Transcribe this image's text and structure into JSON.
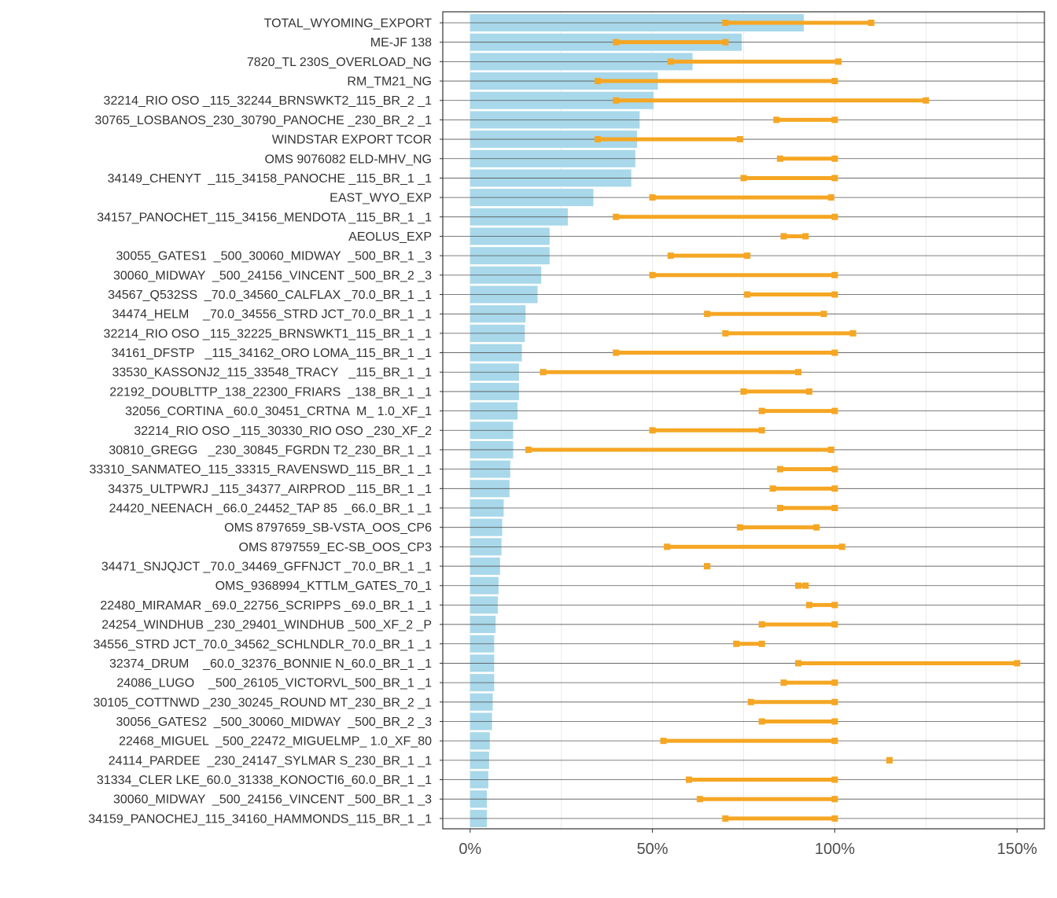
{
  "chart_data": {
    "type": "bar",
    "orientation": "horizontal",
    "title": "",
    "xlabel": "",
    "ylabel": "",
    "xlim": [
      -0.075,
      1.575
    ],
    "xticks": [
      0,
      0.5,
      1.0,
      1.5
    ],
    "xtick_labels": [
      "0%",
      "50%",
      "100%",
      "150%"
    ],
    "grid": true,
    "colors": {
      "bar": "#a8d8ea",
      "range": "#f5a623",
      "gridline": "#ebebeb",
      "rowline": "#555555",
      "border": "#333333"
    },
    "categories": [
      "TOTAL_WYOMING_EXPORT",
      "ME-JF 138",
      "7820_TL 230S_OVERLOAD_NG",
      "RM_TM21_NG",
      "32214_RIO OSO _115_32244_BRNSWKT2_115_BR_2 _1",
      "30765_LOSBANOS_230_30790_PANOCHE _230_BR_2 _1",
      "WINDSTAR EXPORT TCOR",
      "OMS 9076082 ELD-MHV_NG",
      "34149_CHENYT  _115_34158_PANOCHE _115_BR_1 _1",
      "EAST_WYO_EXP",
      "34157_PANOCHET_115_34156_MENDOTA _115_BR_1 _1",
      "AEOLUS_EXP",
      "30055_GATES1  _500_30060_MIDWAY  _500_BR_1 _3",
      "30060_MIDWAY  _500_24156_VINCENT _500_BR_2 _3",
      "34567_Q532SS  _70.0_34560_CALFLAX _70.0_BR_1 _1",
      "34474_HELM    _70.0_34556_STRD JCT_70.0_BR_1 _1",
      "32214_RIO OSO _115_32225_BRNSWKT1_115_BR_1 _1",
      "34161_DFSTP   _115_34162_ORO LOMA_115_BR_1 _1",
      "33530_KASSONJ2_115_33548_TRACY   _115_BR_1 _1",
      "22192_DOUBLTTP_138_22300_FRIARS  _138_BR_1 _1",
      "32056_CORTINA _60.0_30451_CRTNA  M_ 1.0_XF_1",
      "32214_RIO OSO _115_30330_RIO OSO _230_XF_2",
      "30810_GREGG   _230_30845_FGRDN T2_230_BR_1 _1",
      "33310_SANMATEO_115_33315_RAVENSWD_115_BR_1 _1",
      "34375_ULTPWRJ _115_34377_AIRPROD _115_BR_1 _1",
      "24420_NEENACH _66.0_24452_TAP 85  _66.0_BR_1 _1",
      "OMS 8797659_SB-VSTA_OOS_CP6",
      "OMS 8797559_EC-SB_OOS_CP3",
      "34471_SNJQJCT _70.0_34469_GFFNJCT _70.0_BR_1 _1",
      "OMS_9368994_KTTLM_GATES_70_1",
      "22480_MIRAMAR _69.0_22756_SCRIPPS _69.0_BR_1 _1",
      "24254_WINDHUB _230_29401_WINDHUB _500_XF_2 _P",
      "34556_STRD JCT_70.0_34562_SCHLNDLR_70.0_BR_1 _1",
      "32374_DRUM    _60.0_32376_BONNIE N_60.0_BR_1 _1",
      "24086_LUGO    _500_26105_VICTORVL_500_BR_1 _1",
      "30105_COTTNWD _230_30245_ROUND MT_230_BR_2 _1",
      "30056_GATES2  _500_30060_MIDWAY  _500_BR_2 _3",
      "22468_MIGUEL  _500_22472_MIGUELMP_ 1.0_XF_80",
      "24114_PARDEE  _230_24147_SYLMAR S_230_BR_1 _1",
      "31334_CLER LKE_60.0_31338_KONOCTI6_60.0_BR_1 _1",
      "30060_MIDWAY  _500_24156_VINCENT _500_BR_1 _3",
      "34159_PANOCHEJ_115_34160_HAMMONDS_115_BR_1 _1"
    ],
    "values": [
      0.915,
      0.745,
      0.61,
      0.515,
      0.503,
      0.465,
      0.458,
      0.453,
      0.442,
      0.338,
      0.268,
      0.218,
      0.218,
      0.195,
      0.185,
      0.152,
      0.15,
      0.142,
      0.134,
      0.134,
      0.13,
      0.118,
      0.118,
      0.11,
      0.108,
      0.092,
      0.088,
      0.086,
      0.082,
      0.078,
      0.076,
      0.07,
      0.066,
      0.066,
      0.066,
      0.062,
      0.06,
      0.054,
      0.052,
      0.05,
      0.046,
      0.046
    ],
    "ranges": [
      [
        0.7,
        1.1
      ],
      [
        0.4,
        0.7
      ],
      [
        0.55,
        1.01
      ],
      [
        0.35,
        1.0
      ],
      [
        0.4,
        1.25
      ],
      [
        0.84,
        1.0
      ],
      [
        0.35,
        0.74
      ],
      [
        0.85,
        1.0
      ],
      [
        0.75,
        1.0
      ],
      [
        0.5,
        0.99
      ],
      [
        0.4,
        1.0
      ],
      [
        0.86,
        0.92
      ],
      [
        0.55,
        0.76
      ],
      [
        0.5,
        1.0
      ],
      [
        0.76,
        1.0
      ],
      [
        0.65,
        0.97
      ],
      [
        0.7,
        1.05
      ],
      [
        0.4,
        1.0
      ],
      [
        0.2,
        0.9
      ],
      [
        0.75,
        0.93
      ],
      [
        0.8,
        1.0
      ],
      [
        0.5,
        0.8
      ],
      [
        0.16,
        0.99
      ],
      [
        0.85,
        1.0
      ],
      [
        0.83,
        1.0
      ],
      [
        0.85,
        1.0
      ],
      [
        0.74,
        0.95
      ],
      [
        0.54,
        1.02
      ],
      [
        0.65,
        0.65
      ],
      [
        0.9,
        0.92
      ],
      [
        0.93,
        1.0
      ],
      [
        0.8,
        1.0
      ],
      [
        0.73,
        0.8
      ],
      [
        0.9,
        1.5
      ],
      [
        0.86,
        1.0
      ],
      [
        0.77,
        1.0
      ],
      [
        0.8,
        1.0
      ],
      [
        0.53,
        1.0
      ],
      [
        1.15,
        1.15
      ],
      [
        0.6,
        1.0
      ],
      [
        0.63,
        1.0
      ],
      [
        0.7,
        1.0
      ]
    ]
  }
}
